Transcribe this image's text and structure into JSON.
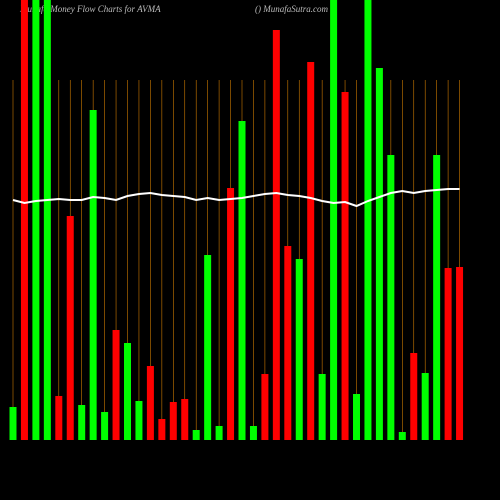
{
  "chart_data": {
    "type": "bar",
    "title": "Munafa Money Flow Charts for AVMA",
    "subtitle": "() MunafaSutra.com",
    "categories": [
      null,
      null,
      null,
      null,
      null,
      null,
      null,
      null,
      null,
      null,
      null,
      null,
      null,
      null,
      null,
      null,
      null,
      null,
      null,
      null,
      null,
      null,
      null,
      null,
      null,
      null,
      null,
      null,
      null,
      null,
      null,
      null,
      null,
      null,
      null,
      null,
      null,
      null,
      null,
      null
    ],
    "values": [
      33,
      440,
      440,
      440,
      44,
      224,
      35,
      330,
      28,
      110,
      97,
      39,
      74,
      21,
      38,
      41,
      10,
      185,
      14,
      252,
      319,
      14,
      66,
      410,
      194,
      181,
      378,
      66,
      440,
      348,
      46,
      440,
      372,
      285,
      8,
      87,
      67,
      285,
      172,
      173
    ],
    "colors": [
      "#00ff00",
      "#ff0000",
      "#00ff00",
      "#00ff00",
      "#ff0000",
      "#ff0000",
      "#00ff00",
      "#00ff00",
      "#00ff00",
      "#ff0000",
      "#00ff00",
      "#00ff00",
      "#ff0000",
      "#ff0000",
      "#ff0000",
      "#ff0000",
      "#00ff00",
      "#00ff00",
      "#00ff00",
      "#ff0000",
      "#00ff00",
      "#00ff00",
      "#ff0000",
      "#ff0000",
      "#ff0000",
      "#00ff00",
      "#ff0000",
      "#00ff00",
      "#00ff00",
      "#ff0000",
      "#00ff00",
      "#00ff00",
      "#00ff00",
      "#00ff00",
      "#00ff00",
      "#ff0000",
      "#00ff00",
      "#00ff00",
      "#ff0000",
      "#ff0000"
    ],
    "line": {
      "color": "#ffffff",
      "values": [
        240,
        237,
        239,
        240,
        241,
        240,
        240,
        243,
        242,
        240,
        244,
        246,
        247,
        245,
        244,
        243,
        240,
        242,
        240,
        241,
        242,
        244,
        246,
        247,
        245,
        244,
        242,
        239,
        237,
        238,
        234,
        239,
        243,
        247,
        249,
        247,
        249,
        250,
        251,
        251
      ]
    },
    "ylim": [
      0,
      440
    ],
    "grid_color": "#cc7a00"
  }
}
